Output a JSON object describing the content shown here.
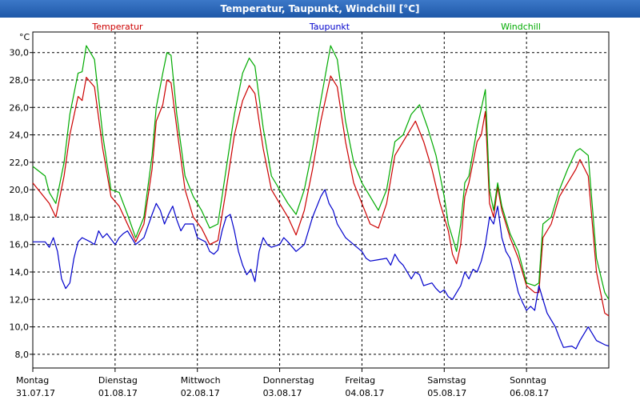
{
  "window": {
    "title": "Temperatur, Taupunkt, Windchill [°C]"
  },
  "chart_data": {
    "type": "line",
    "unit": "°C",
    "ylim": [
      7.0,
      31.5
    ],
    "yticks": [
      "8,0",
      "10,0",
      "12,0",
      "14,0",
      "16,0",
      "18,0",
      "20,0",
      "22,0",
      "24,0",
      "26,0",
      "28,0",
      "30,0"
    ],
    "days": [
      {
        "name": "Montag",
        "date": "31.07.17"
      },
      {
        "name": "Dienstag",
        "date": "01.08.17"
      },
      {
        "name": "Mittwoch",
        "date": "02.08.17"
      },
      {
        "name": "Donnerstag",
        "date": "03.08.17"
      },
      {
        "name": "Freitag",
        "date": "04.08.17"
      },
      {
        "name": "Samstag",
        "date": "05.08.17"
      },
      {
        "name": "Sonntag",
        "date": "06.08.17"
      }
    ],
    "xlim": [
      0,
      7
    ],
    "grid": true,
    "legend_position": "top",
    "series": [
      {
        "name": "Temperatur",
        "color": "#cc0000",
        "points": [
          [
            0,
            20.5
          ],
          [
            0.2,
            19.0
          ],
          [
            0.28,
            18.0
          ],
          [
            0.38,
            21.0
          ],
          [
            0.45,
            24.0
          ],
          [
            0.55,
            26.8
          ],
          [
            0.6,
            26.5
          ],
          [
            0.65,
            28.2
          ],
          [
            0.75,
            27.5
          ],
          [
            0.85,
            23.0
          ],
          [
            0.95,
            19.5
          ],
          [
            1.05,
            18.8
          ],
          [
            1.15,
            17.5
          ],
          [
            1.25,
            16.2
          ],
          [
            1.35,
            17.5
          ],
          [
            1.45,
            21.5
          ],
          [
            1.5,
            25.0
          ],
          [
            1.58,
            26.2
          ],
          [
            1.63,
            28.0
          ],
          [
            1.68,
            27.8
          ],
          [
            1.75,
            24.5
          ],
          [
            1.85,
            20.0
          ],
          [
            1.95,
            18.0
          ],
          [
            2.05,
            17.2
          ],
          [
            2.15,
            16.0
          ],
          [
            2.25,
            16.3
          ],
          [
            2.35,
            20.0
          ],
          [
            2.45,
            24.0
          ],
          [
            2.55,
            26.5
          ],
          [
            2.63,
            27.6
          ],
          [
            2.7,
            27.0
          ],
          [
            2.8,
            23.0
          ],
          [
            2.9,
            20.0
          ],
          [
            3.0,
            19.0
          ],
          [
            3.1,
            18.0
          ],
          [
            3.2,
            16.7
          ],
          [
            3.3,
            18.5
          ],
          [
            3.4,
            21.5
          ],
          [
            3.5,
            25.0
          ],
          [
            3.62,
            28.3
          ],
          [
            3.7,
            27.5
          ],
          [
            3.8,
            23.5
          ],
          [
            3.9,
            20.5
          ],
          [
            4.0,
            19.0
          ],
          [
            4.1,
            17.5
          ],
          [
            4.2,
            17.2
          ],
          [
            4.3,
            19.0
          ],
          [
            4.4,
            22.5
          ],
          [
            4.5,
            23.5
          ],
          [
            4.6,
            24.5
          ],
          [
            4.65,
            25.0
          ],
          [
            4.75,
            23.5
          ],
          [
            4.85,
            21.5
          ],
          [
            4.95,
            19.0
          ],
          [
            5.05,
            17.0
          ],
          [
            5.1,
            15.3
          ],
          [
            5.15,
            14.6
          ],
          [
            5.2,
            16.0
          ],
          [
            5.25,
            19.5
          ],
          [
            5.3,
            20.5
          ],
          [
            5.4,
            23.5
          ],
          [
            5.45,
            24.0
          ],
          [
            5.5,
            25.7
          ],
          [
            5.55,
            19.0
          ],
          [
            5.6,
            18.0
          ],
          [
            5.65,
            20.2
          ],
          [
            5.7,
            18.5
          ],
          [
            5.8,
            16.5
          ],
          [
            5.9,
            15.0
          ],
          [
            6.0,
            13.0
          ],
          [
            6.1,
            12.5
          ],
          [
            6.15,
            12.5
          ],
          [
            6.2,
            16.5
          ],
          [
            6.3,
            17.5
          ],
          [
            6.4,
            19.5
          ],
          [
            6.5,
            20.5
          ],
          [
            6.6,
            21.5
          ],
          [
            6.65,
            22.2
          ],
          [
            6.75,
            21.0
          ],
          [
            6.85,
            14.0
          ],
          [
            6.95,
            11.0
          ],
          [
            7.0,
            10.8
          ]
        ]
      },
      {
        "name": "Taupunkt",
        "color": "#0000cc",
        "points": [
          [
            0,
            16.2
          ],
          [
            0.15,
            16.2
          ],
          [
            0.2,
            15.8
          ],
          [
            0.25,
            16.5
          ],
          [
            0.3,
            15.5
          ],
          [
            0.35,
            13.5
          ],
          [
            0.4,
            12.8
          ],
          [
            0.45,
            13.2
          ],
          [
            0.5,
            15.0
          ],
          [
            0.55,
            16.2
          ],
          [
            0.6,
            16.5
          ],
          [
            0.7,
            16.2
          ],
          [
            0.75,
            16.0
          ],
          [
            0.8,
            17.0
          ],
          [
            0.85,
            16.5
          ],
          [
            0.9,
            16.8
          ],
          [
            1.0,
            16.0
          ],
          [
            1.05,
            16.5
          ],
          [
            1.1,
            16.8
          ],
          [
            1.15,
            17.0
          ],
          [
            1.25,
            16.0
          ],
          [
            1.35,
            16.5
          ],
          [
            1.45,
            18.2
          ],
          [
            1.5,
            19.0
          ],
          [
            1.55,
            18.5
          ],
          [
            1.6,
            17.5
          ],
          [
            1.65,
            18.2
          ],
          [
            1.7,
            18.8
          ],
          [
            1.75,
            17.8
          ],
          [
            1.8,
            17.0
          ],
          [
            1.85,
            17.5
          ],
          [
            1.95,
            17.5
          ],
          [
            2.0,
            16.5
          ],
          [
            2.1,
            16.2
          ],
          [
            2.15,
            15.5
          ],
          [
            2.2,
            15.3
          ],
          [
            2.25,
            15.6
          ],
          [
            2.3,
            17.0
          ],
          [
            2.35,
            18.0
          ],
          [
            2.4,
            18.2
          ],
          [
            2.45,
            17.0
          ],
          [
            2.5,
            15.5
          ],
          [
            2.55,
            14.5
          ],
          [
            2.6,
            13.8
          ],
          [
            2.65,
            14.2
          ],
          [
            2.7,
            13.3
          ],
          [
            2.75,
            15.5
          ],
          [
            2.8,
            16.5
          ],
          [
            2.85,
            16.0
          ],
          [
            2.9,
            15.8
          ],
          [
            3.0,
            16.0
          ],
          [
            3.05,
            16.5
          ],
          [
            3.1,
            16.2
          ],
          [
            3.2,
            15.5
          ],
          [
            3.3,
            16.0
          ],
          [
            3.4,
            18.0
          ],
          [
            3.5,
            19.5
          ],
          [
            3.55,
            20.0
          ],
          [
            3.6,
            19.0
          ],
          [
            3.65,
            18.5
          ],
          [
            3.7,
            17.5
          ],
          [
            3.8,
            16.5
          ],
          [
            3.9,
            16.0
          ],
          [
            4.0,
            15.5
          ],
          [
            4.05,
            15.0
          ],
          [
            4.1,
            14.8
          ],
          [
            4.2,
            14.9
          ],
          [
            4.3,
            15.0
          ],
          [
            4.35,
            14.5
          ],
          [
            4.4,
            15.3
          ],
          [
            4.45,
            14.8
          ],
          [
            4.5,
            14.5
          ],
          [
            4.6,
            13.5
          ],
          [
            4.65,
            14.0
          ],
          [
            4.7,
            13.8
          ],
          [
            4.75,
            13.0
          ],
          [
            4.85,
            13.2
          ],
          [
            4.9,
            12.8
          ],
          [
            4.95,
            12.5
          ],
          [
            5.0,
            12.7
          ],
          [
            5.05,
            12.2
          ],
          [
            5.1,
            12.0
          ],
          [
            5.15,
            12.5
          ],
          [
            5.2,
            13.0
          ],
          [
            5.25,
            14.0
          ],
          [
            5.3,
            13.5
          ],
          [
            5.35,
            14.2
          ],
          [
            5.4,
            14.0
          ],
          [
            5.45,
            14.8
          ],
          [
            5.5,
            16.0
          ],
          [
            5.55,
            18.0
          ],
          [
            5.6,
            17.5
          ],
          [
            5.65,
            18.8
          ],
          [
            5.7,
            16.5
          ],
          [
            5.75,
            15.5
          ],
          [
            5.8,
            15.0
          ],
          [
            5.85,
            13.8
          ],
          [
            5.9,
            12.5
          ],
          [
            5.95,
            11.8
          ],
          [
            6.0,
            11.2
          ],
          [
            6.05,
            11.5
          ],
          [
            6.1,
            11.2
          ],
          [
            6.15,
            13.0
          ],
          [
            6.2,
            12.0
          ],
          [
            6.25,
            11.0
          ],
          [
            6.35,
            10.0
          ],
          [
            6.4,
            9.2
          ],
          [
            6.45,
            8.5
          ],
          [
            6.55,
            8.6
          ],
          [
            6.6,
            8.4
          ],
          [
            6.65,
            9.0
          ],
          [
            6.75,
            10.0
          ],
          [
            6.85,
            9.0
          ],
          [
            6.95,
            8.7
          ],
          [
            7.0,
            8.6
          ]
        ]
      },
      {
        "name": "Windchill",
        "color": "#00aa00",
        "points": [
          [
            0,
            21.7
          ],
          [
            0.15,
            21.0
          ],
          [
            0.2,
            19.8
          ],
          [
            0.28,
            19.0
          ],
          [
            0.38,
            22.0
          ],
          [
            0.45,
            25.5
          ],
          [
            0.55,
            28.5
          ],
          [
            0.6,
            28.6
          ],
          [
            0.65,
            30.5
          ],
          [
            0.75,
            29.5
          ],
          [
            0.85,
            24.0
          ],
          [
            0.95,
            20.0
          ],
          [
            1.05,
            19.8
          ],
          [
            1.15,
            18.2
          ],
          [
            1.25,
            16.5
          ],
          [
            1.35,
            18.0
          ],
          [
            1.45,
            22.5
          ],
          [
            1.5,
            26.0
          ],
          [
            1.58,
            28.5
          ],
          [
            1.63,
            30.0
          ],
          [
            1.68,
            29.8
          ],
          [
            1.75,
            25.5
          ],
          [
            1.85,
            21.0
          ],
          [
            1.95,
            19.5
          ],
          [
            2.05,
            18.5
          ],
          [
            2.15,
            17.2
          ],
          [
            2.25,
            17.5
          ],
          [
            2.35,
            21.5
          ],
          [
            2.45,
            25.5
          ],
          [
            2.55,
            28.5
          ],
          [
            2.63,
            29.6
          ],
          [
            2.7,
            29.0
          ],
          [
            2.8,
            24.5
          ],
          [
            2.9,
            21.0
          ],
          [
            3.0,
            20.0
          ],
          [
            3.1,
            19.0
          ],
          [
            3.2,
            18.2
          ],
          [
            3.3,
            20.0
          ],
          [
            3.4,
            23.0
          ],
          [
            3.5,
            26.5
          ],
          [
            3.62,
            30.5
          ],
          [
            3.7,
            29.5
          ],
          [
            3.8,
            25.0
          ],
          [
            3.9,
            22.0
          ],
          [
            4.0,
            20.5
          ],
          [
            4.1,
            19.5
          ],
          [
            4.2,
            18.5
          ],
          [
            4.3,
            20.0
          ],
          [
            4.4,
            23.5
          ],
          [
            4.5,
            24.0
          ],
          [
            4.6,
            25.5
          ],
          [
            4.7,
            26.2
          ],
          [
            4.8,
            24.5
          ],
          [
            4.9,
            22.5
          ],
          [
            5.0,
            19.5
          ],
          [
            5.05,
            17.5
          ],
          [
            5.1,
            16.5
          ],
          [
            5.15,
            15.5
          ],
          [
            5.2,
            17.5
          ],
          [
            5.25,
            20.5
          ],
          [
            5.3,
            21.0
          ],
          [
            5.4,
            24.5
          ],
          [
            5.5,
            27.3
          ],
          [
            5.55,
            20.0
          ],
          [
            5.6,
            18.5
          ],
          [
            5.65,
            20.5
          ],
          [
            5.7,
            18.8
          ],
          [
            5.8,
            16.8
          ],
          [
            5.9,
            15.5
          ],
          [
            6.0,
            13.2
          ],
          [
            6.1,
            13.0
          ],
          [
            6.15,
            13.2
          ],
          [
            6.2,
            17.5
          ],
          [
            6.3,
            18.0
          ],
          [
            6.4,
            20.0
          ],
          [
            6.5,
            21.5
          ],
          [
            6.6,
            22.8
          ],
          [
            6.65,
            23.0
          ],
          [
            6.75,
            22.5
          ],
          [
            6.85,
            15.0
          ],
          [
            6.95,
            12.5
          ],
          [
            7.0,
            12.0
          ]
        ]
      }
    ]
  }
}
